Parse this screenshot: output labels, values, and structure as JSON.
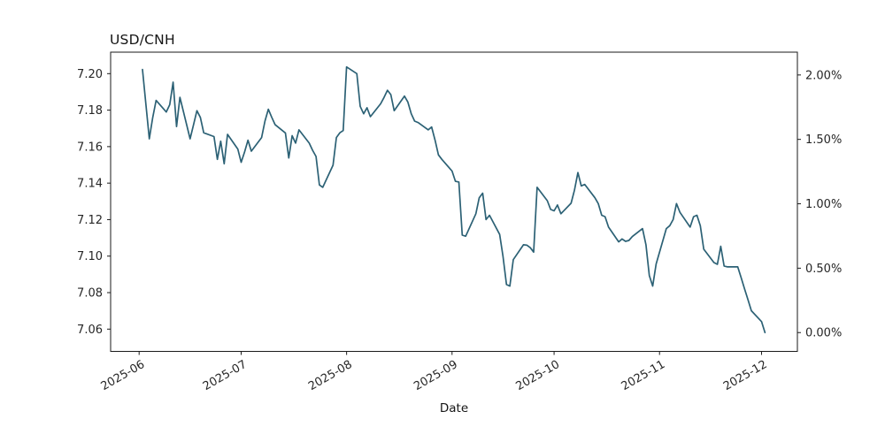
{
  "title": "USD/CNH",
  "xlabel": "Date",
  "colors": {
    "line": "#2c6175",
    "axis": "#1a1a1a",
    "text": "#262626",
    "background": "#ffffff"
  },
  "chart_data": {
    "type": "line",
    "title": "USD/CNH",
    "xlabel": "Date",
    "ylabel_left": "",
    "legend": "none",
    "grid": false,
    "x_tick_labels": [
      "2025-06",
      "2025-07",
      "2025-08",
      "2025-09",
      "2025-10",
      "2025-11",
      "2025-12"
    ],
    "y_left_ticks": [
      7.2,
      7.18,
      7.16,
      7.14,
      7.12,
      7.1,
      7.08,
      7.06
    ],
    "y_right_tick_labels": [
      "2.00%",
      "1.50%",
      "1.00%",
      "0.50%",
      "0.00%"
    ],
    "y_right_tick_pcts": [
      2.0,
      1.5,
      1.0,
      0.5,
      0.0
    ],
    "y_right_reference_value": 7.0581,
    "ylim": [
      7.0478,
      7.2118
    ],
    "x_range_shown": [
      "2025-05-24",
      "2025-12-11"
    ],
    "line_color": "#2c6175",
    "dates": [
      "2025-06-02",
      "2025-06-03",
      "2025-06-04",
      "2025-06-05",
      "2025-06-06",
      "2025-06-09",
      "2025-06-10",
      "2025-06-11",
      "2025-06-12",
      "2025-06-13",
      "2025-06-16",
      "2025-06-17",
      "2025-06-18",
      "2025-06-19",
      "2025-06-20",
      "2025-06-23",
      "2025-06-24",
      "2025-06-25",
      "2025-06-26",
      "2025-06-27",
      "2025-06-30",
      "2025-07-01",
      "2025-07-02",
      "2025-07-03",
      "2025-07-04",
      "2025-07-07",
      "2025-07-08",
      "2025-07-09",
      "2025-07-10",
      "2025-07-11",
      "2025-07-14",
      "2025-07-15",
      "2025-07-16",
      "2025-07-17",
      "2025-07-18",
      "2025-07-21",
      "2025-07-22",
      "2025-07-23",
      "2025-07-24",
      "2025-07-25",
      "2025-07-28",
      "2025-07-29",
      "2025-07-30",
      "2025-07-31",
      "2025-08-01",
      "2025-08-04",
      "2025-08-05",
      "2025-08-06",
      "2025-08-07",
      "2025-08-08",
      "2025-08-11",
      "2025-08-12",
      "2025-08-13",
      "2025-08-14",
      "2025-08-15",
      "2025-08-18",
      "2025-08-19",
      "2025-08-20",
      "2025-08-21",
      "2025-08-22",
      "2025-08-25",
      "2025-08-26",
      "2025-08-27",
      "2025-08-28",
      "2025-08-29",
      "2025-09-01",
      "2025-09-02",
      "2025-09-03",
      "2025-09-04",
      "2025-09-05",
      "2025-09-08",
      "2025-09-09",
      "2025-09-10",
      "2025-09-11",
      "2025-09-12",
      "2025-09-15",
      "2025-09-16",
      "2025-09-17",
      "2025-09-18",
      "2025-09-19",
      "2025-09-22",
      "2025-09-23",
      "2025-09-24",
      "2025-09-25",
      "2025-09-26",
      "2025-09-29",
      "2025-09-30",
      "2025-10-01",
      "2025-10-02",
      "2025-10-03",
      "2025-10-06",
      "2025-10-07",
      "2025-10-08",
      "2025-10-09",
      "2025-10-10",
      "2025-10-13",
      "2025-10-14",
      "2025-10-15",
      "2025-10-16",
      "2025-10-17",
      "2025-10-20",
      "2025-10-21",
      "2025-10-22",
      "2025-10-23",
      "2025-10-24",
      "2025-10-27",
      "2025-10-28",
      "2025-10-29",
      "2025-10-30",
      "2025-10-31",
      "2025-11-03",
      "2025-11-04",
      "2025-11-05",
      "2025-11-06",
      "2025-11-07",
      "2025-11-10",
      "2025-11-11",
      "2025-11-12",
      "2025-11-13",
      "2025-11-14",
      "2025-11-17",
      "2025-11-18",
      "2025-11-19",
      "2025-11-20",
      "2025-11-21",
      "2025-11-24",
      "2025-11-25",
      "2025-11-26",
      "2025-11-27",
      "2025-11-28",
      "2025-12-01",
      "2025-12-02"
    ],
    "values": [
      7.2023,
      7.183,
      7.1643,
      7.176,
      7.1853,
      7.179,
      7.183,
      7.1953,
      7.171,
      7.187,
      7.1643,
      7.172,
      7.1797,
      7.176,
      7.1676,
      7.1655,
      7.153,
      7.163,
      7.1506,
      7.1667,
      7.1587,
      7.1514,
      7.157,
      7.1635,
      7.1575,
      7.165,
      7.174,
      7.1805,
      7.176,
      7.172,
      7.1675,
      7.1538,
      7.166,
      7.1619,
      7.1692,
      7.1619,
      7.158,
      7.1546,
      7.139,
      7.1377,
      7.1498,
      7.165,
      7.1676,
      7.1688,
      7.2037,
      7.2,
      7.1821,
      7.178,
      7.1813,
      7.1764,
      7.1835,
      7.1869,
      7.1909,
      7.1885,
      7.1797,
      7.1877,
      7.1845,
      7.178,
      7.174,
      7.1732,
      7.1692,
      7.1708,
      7.1635,
      7.1555,
      7.153,
      7.1466,
      7.141,
      7.1406,
      7.1115,
      7.1109,
      7.1232,
      7.132,
      7.1345,
      7.12,
      7.1224,
      7.1119,
      7.0997,
      7.0844,
      7.0836,
      7.0981,
      7.1062,
      7.106,
      7.1046,
      7.1022,
      7.1377,
      7.1304,
      7.1256,
      7.1248,
      7.128,
      7.1232,
      7.129,
      7.1361,
      7.1458,
      7.1385,
      7.1393,
      7.132,
      7.1288,
      7.1224,
      7.1216,
      7.1159,
      7.1078,
      7.1094,
      7.1081,
      7.1086,
      7.1107,
      7.1151,
      7.1062,
      7.0893,
      7.0836,
      7.0957,
      7.1151,
      7.1167,
      7.12,
      7.1288,
      7.124,
      7.1159,
      7.1216,
      7.1224,
      7.1167,
      7.1038,
      7.0965,
      7.0955,
      7.1054,
      7.0946,
      7.0941,
      7.0941,
      7.0881,
      7.0821,
      7.0761,
      7.0701,
      7.0641,
      7.0581
    ]
  }
}
